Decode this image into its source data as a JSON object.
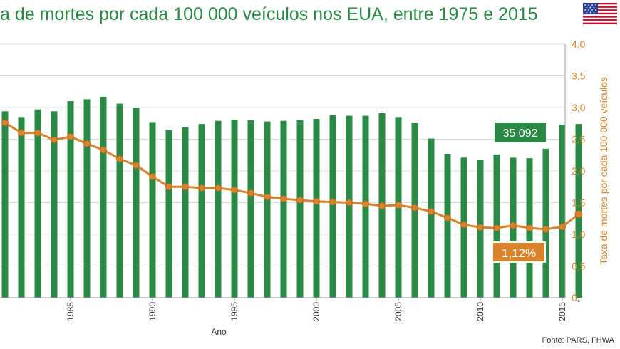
{
  "title": "a de mortes por cada 100 000 veículos nos EUA, entre 1975 e 2015",
  "source": "Fonte: PARS, FHWA",
  "colors": {
    "bars": "#2a8a45",
    "line": "#d9822b",
    "title": "#2a8a45",
    "axis_right": "#d9822b",
    "grid": "#dddddd"
  },
  "chart_data": {
    "type": "bar+line",
    "title": "a de mortes por cada 100 000 veículos nos EUA, entre 1975 e 2015",
    "xlabel": "Ano",
    "ylabel_right": "Taxa de mortes por cada 100 000 veículos",
    "ylim_right": [
      0,
      4.0
    ],
    "y_ticks_right": [
      "0",
      "0,5",
      "1,0",
      "1,5",
      "2,0",
      "2,5",
      "3,0",
      "3,5",
      "4,0"
    ],
    "x": [
      1981,
      1982,
      1983,
      1984,
      1985,
      1986,
      1987,
      1988,
      1989,
      1990,
      1991,
      1992,
      1993,
      1994,
      1995,
      1996,
      1997,
      1998,
      1999,
      2000,
      2001,
      2002,
      2003,
      2004,
      2005,
      2006,
      2007,
      2008,
      2009,
      2010,
      2011,
      2012,
      2013,
      2014,
      2015,
      2016
    ],
    "x_tick_labels": [
      {
        "x": 1985,
        "label": "1985"
      },
      {
        "x": 1990,
        "label": "1990"
      },
      {
        "x": 1995,
        "label": "1995"
      },
      {
        "x": 2000,
        "label": "2000"
      },
      {
        "x": 2005,
        "label": "2005"
      },
      {
        "x": 2010,
        "label": "2010"
      },
      {
        "x": 2015,
        "label": "2015"
      },
      {
        "x": 2016,
        "label": "*"
      }
    ],
    "series": [
      {
        "type": "bar",
        "values": [
          2.94,
          2.85,
          2.97,
          2.94,
          3.1,
          3.13,
          3.17,
          3.06,
          2.99,
          2.77,
          2.64,
          2.69,
          2.74,
          2.79,
          2.81,
          2.8,
          2.78,
          2.79,
          2.8,
          2.82,
          2.88,
          2.87,
          2.87,
          2.91,
          2.85,
          2.76,
          2.51,
          2.27,
          2.21,
          2.18,
          2.26,
          2.21,
          2.2,
          2.35,
          2.73,
          2.74
        ]
      },
      {
        "type": "line",
        "values": [
          2.76,
          2.6,
          2.6,
          2.49,
          2.54,
          2.43,
          2.33,
          2.19,
          2.09,
          1.91,
          1.75,
          1.75,
          1.73,
          1.73,
          1.7,
          1.65,
          1.59,
          1.56,
          1.54,
          1.52,
          1.51,
          1.5,
          1.48,
          1.45,
          1.46,
          1.42,
          1.36,
          1.26,
          1.15,
          1.11,
          1.1,
          1.14,
          1.1,
          1.08,
          1.12,
          1.32
        ]
      }
    ],
    "annotations": [
      {
        "x": 2015,
        "series": "bar",
        "text": "35 092"
      },
      {
        "x": 2015,
        "series": "line",
        "text": "1,12%"
      }
    ]
  }
}
